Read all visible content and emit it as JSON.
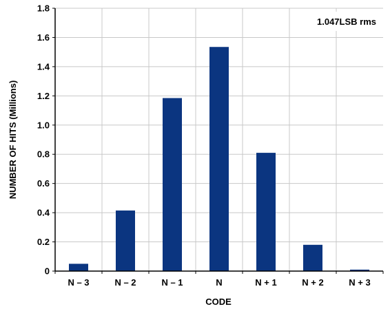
{
  "chart_data": {
    "type": "bar",
    "title": "",
    "xlabel": "CODE",
    "ylabel": "NUMBER OF HITS (Millions)",
    "categories": [
      "N – 3",
      "N – 2",
      "N – 1",
      "N",
      "N + 1",
      "N + 2",
      "N + 3"
    ],
    "values": [
      0.05,
      0.415,
      1.185,
      1.535,
      0.81,
      0.18,
      0.01
    ],
    "ylim": [
      0,
      1.8
    ],
    "yticks": [
      "0",
      "0.2",
      "0.4",
      "0.6",
      "0.8",
      "1.0",
      "1.2",
      "1.4",
      "1.6",
      "1.8"
    ],
    "grid": true,
    "annotation": "1.047LSB rms",
    "bar_color": "#0b3580",
    "grid_color": "#c8c8c8"
  }
}
